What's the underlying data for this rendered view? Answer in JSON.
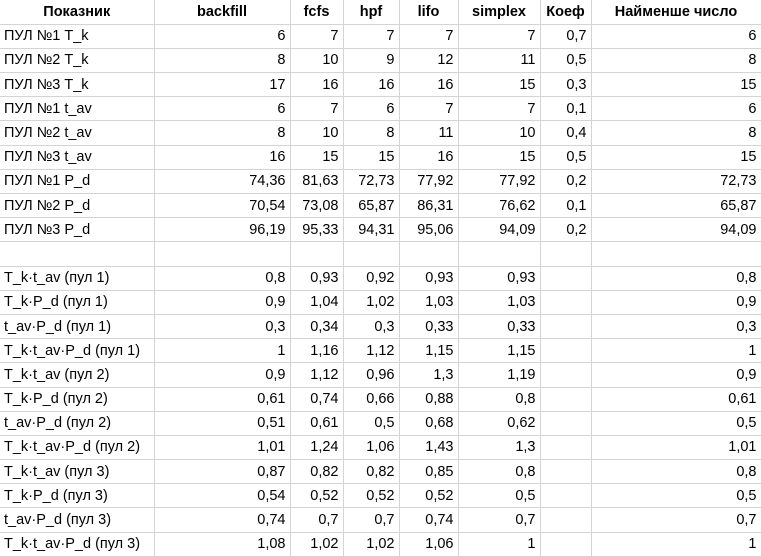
{
  "headers": [
    "Показник",
    "backfill",
    "fcfs",
    "hpf",
    "lifo",
    "simplex",
    "Коеф",
    "Найменше число"
  ],
  "rows": [
    [
      "ПУЛ №1 T_k",
      "6",
      "7",
      "7",
      "7",
      "7",
      "0,7",
      "6"
    ],
    [
      "ПУЛ №2 T_k",
      "8",
      "10",
      "9",
      "12",
      "11",
      "0,5",
      "8"
    ],
    [
      "ПУЛ №3 T_k",
      "17",
      "16",
      "16",
      "16",
      "15",
      "0,3",
      "15"
    ],
    [
      "ПУЛ №1 t_av",
      "6",
      "7",
      "6",
      "7",
      "7",
      "0,1",
      "6"
    ],
    [
      "ПУЛ №2 t_av",
      "8",
      "10",
      "8",
      "11",
      "10",
      "0,4",
      "8"
    ],
    [
      "ПУЛ №3 t_av",
      "16",
      "15",
      "15",
      "16",
      "15",
      "0,5",
      "15"
    ],
    [
      "ПУЛ №1 P_d",
      "74,36",
      "81,63",
      "72,73",
      "77,92",
      "77,92",
      "0,2",
      "72,73"
    ],
    [
      "ПУЛ №2 P_d",
      "70,54",
      "73,08",
      "65,87",
      "86,31",
      "76,62",
      "0,1",
      "65,87"
    ],
    [
      "ПУЛ №3 P_d",
      "96,19",
      "95,33",
      "94,31",
      "95,06",
      "94,09",
      "0,2",
      "94,09"
    ],
    [
      "",
      "",
      "",
      "",
      "",
      "",
      "",
      ""
    ],
    [
      "T_k·t_av (пул 1)",
      "0,8",
      "0,93",
      "0,92",
      "0,93",
      "0,93",
      "",
      "0,8"
    ],
    [
      "T_k·P_d (пул 1)",
      "0,9",
      "1,04",
      "1,02",
      "1,03",
      "1,03",
      "",
      "0,9"
    ],
    [
      "t_av·P_d (пул 1)",
      "0,3",
      "0,34",
      "0,3",
      "0,33",
      "0,33",
      "",
      "0,3"
    ],
    [
      "T_k·t_av·P_d (пул 1)",
      "1",
      "1,16",
      "1,12",
      "1,15",
      "1,15",
      "",
      "1"
    ],
    [
      "T_k·t_av (пул 2)",
      "0,9",
      "1,12",
      "0,96",
      "1,3",
      "1,19",
      "",
      "0,9"
    ],
    [
      "T_k·P_d (пул 2)",
      "0,61",
      "0,74",
      "0,66",
      "0,88",
      "0,8",
      "",
      "0,61"
    ],
    [
      "t_av·P_d (пул 2)",
      "0,51",
      "0,61",
      "0,5",
      "0,68",
      "0,62",
      "",
      "0,5"
    ],
    [
      "T_k·t_av·P_d (пул 2)",
      "1,01",
      "1,24",
      "1,06",
      "1,43",
      "1,3",
      "",
      "1,01"
    ],
    [
      "T_k·t_av (пул 3)",
      "0,87",
      "0,82",
      "0,82",
      "0,85",
      "0,8",
      "",
      "0,8"
    ],
    [
      "T_k·P_d (пул 3)",
      "0,54",
      "0,52",
      "0,52",
      "0,52",
      "0,5",
      "",
      "0,5"
    ],
    [
      "t_av·P_d (пул 3)",
      "0,74",
      "0,7",
      "0,7",
      "0,74",
      "0,7",
      "",
      "0,7"
    ],
    [
      "T_k·t_av·P_d (пул 3)",
      "1,08",
      "1,02",
      "1,02",
      "1,06",
      "1",
      "",
      "1"
    ]
  ]
}
